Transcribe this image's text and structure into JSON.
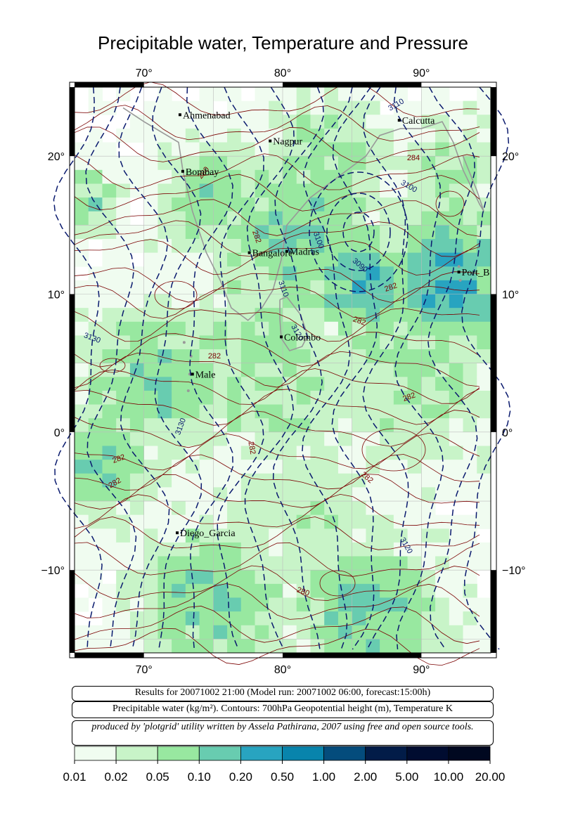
{
  "title": "Precipitable water, Temperature and Pressure",
  "axes": {
    "lon_top": [
      "70°",
      "80°",
      "90°"
    ],
    "lon_bottom": [
      "70°",
      "80°",
      "90°"
    ],
    "lat_left": [
      "20°",
      "10°",
      "0°",
      "−10°"
    ],
    "lat_right": [
      "20°",
      "10°",
      "0°",
      "−10°"
    ]
  },
  "cities": [
    {
      "name": "Ahmenabad"
    },
    {
      "name": "Calcutta"
    },
    {
      "name": "Nagpur"
    },
    {
      "name": "Bombay"
    },
    {
      "name": "Madras"
    },
    {
      "name": "Bangalore"
    },
    {
      "name": "Port_B"
    },
    {
      "name": "Colombo"
    },
    {
      "name": "Male"
    },
    {
      "name": "Diego_Garcia"
    }
  ],
  "contour_labels": {
    "height": [
      "3110",
      "3100",
      "3100",
      "3090",
      "3110",
      "3130",
      "3120",
      "3130",
      "3120"
    ],
    "temperature": [
      "280",
      "284",
      "282",
      "282",
      "282",
      "282",
      "282",
      "282",
      "282",
      "282",
      "282",
      "280"
    ]
  },
  "info": {
    "line1": "Results for 20071002 21:00 (Model run: 20071002 06:00, forecast:15:00h)",
    "line2": "Precipitable water (kg/m²).  Contours: 700hPa Geopotential height (m), Temperature K",
    "line3": "produced by 'plotgrid' utility written by Assela Pathirana, 2007 using free and open source tools."
  },
  "legend": {
    "labels": [
      "0.01",
      "0.02",
      "0.05",
      "0.10",
      "0.20",
      "0.50",
      "1.00",
      "2.00",
      "5.00",
      "10.00",
      "20.00"
    ],
    "colors": [
      "#f0fcf0",
      "#c8f4c8",
      "#98e8a0",
      "#68ccb0",
      "#28a4c0",
      "#0884ac",
      "#044c7c",
      "#021c48",
      "#000c30",
      "#000820"
    ]
  },
  "colors": {
    "height_contour": "#0a1a6e",
    "temp_contour": "#7a0000",
    "coast": "#999999"
  }
}
